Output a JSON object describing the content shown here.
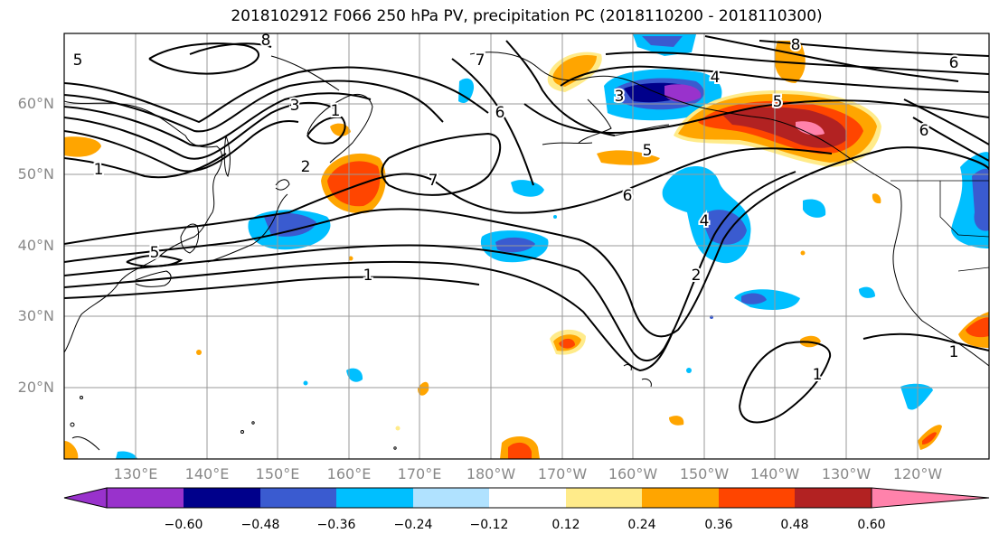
{
  "title": "2018102912 F066 250 hPa PV, precipitation PC (2018110200 - 2018110300)",
  "lat_labels": [
    "60°N",
    "50°N",
    "40°N",
    "30°N",
    "20°N"
  ],
  "lon_labels": [
    "130°E",
    "140°E",
    "150°E",
    "160°E",
    "170°E",
    "180°W",
    "170°W",
    "160°W",
    "150°W",
    "140°W",
    "130°W",
    "120°W"
  ],
  "colorbar": {
    "ticks": [
      "−0.60",
      "−0.48",
      "−0.36",
      "−0.24",
      "−0.12",
      "0.12",
      "0.24",
      "0.36",
      "0.48",
      "0.60"
    ],
    "colors": [
      "#9932CC",
      "#00008B",
      "#3A5BD0",
      "#00BFFF",
      "#B0E2FF",
      "#FFFFFF",
      "#FFEB8A",
      "#FFA500",
      "#FF4500",
      "#B22222",
      "#FF82AB"
    ]
  },
  "contour_labels": [
    "8",
    "5",
    "3",
    "1",
    "2",
    "7",
    "6",
    "4",
    "5",
    "6",
    "7",
    "6",
    "8",
    "1",
    "5",
    "1",
    "2",
    "4",
    "1",
    "1",
    "6",
    "3",
    "5"
  ]
}
